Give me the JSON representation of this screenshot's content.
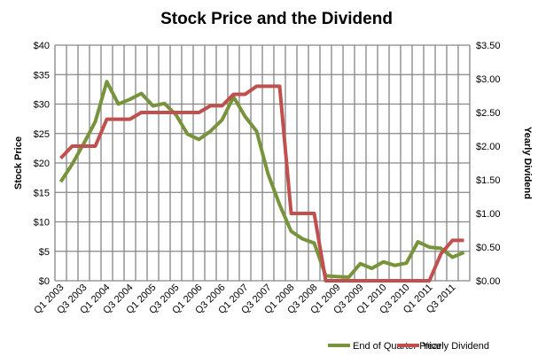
{
  "chart_data": {
    "type": "line",
    "title": "Stock Price and the Dividend",
    "ylabel": "Stock Price",
    "y2label": "Yearly Dividend",
    "ylim": [
      0,
      40
    ],
    "y2lim": [
      0,
      3.5
    ],
    "yticks": [
      "$0",
      "$5",
      "$10",
      "$15",
      "$20",
      "$25",
      "$30",
      "$35",
      "$40"
    ],
    "y2ticks": [
      "$0.00",
      "$0.50",
      "$1.00",
      "$1.50",
      "$2.00",
      "$2.50",
      "$3.00",
      "$3.50"
    ],
    "grid": true,
    "legend": "bottom",
    "categories": [
      "Q1 2003",
      "Q2 2003",
      "Q3 2003",
      "Q4 2003",
      "Q1 2004",
      "Q2 2004",
      "Q3 2004",
      "Q4 2004",
      "Q1 2005",
      "Q2 2005",
      "Q3 2005",
      "Q4 2005",
      "Q1 2006",
      "Q2 2006",
      "Q3 2006",
      "Q4 2006",
      "Q1 2007",
      "Q2 2007",
      "Q3 2007",
      "Q4 2007",
      "Q1 2008",
      "Q2 2008",
      "Q3 2008",
      "Q4 2008",
      "Q1 2009",
      "Q2 2009",
      "Q3 2009",
      "Q4 2009",
      "Q1 2010",
      "Q2 2010",
      "Q3 2010",
      "Q4 2010",
      "Q1 2011",
      "Q2 2011",
      "Q3 2011",
      "Q4 2011"
    ],
    "xticklabels": [
      "Q1 2003",
      "Q3 2003",
      "Q1 2004",
      "Q3 2004",
      "Q1 2005",
      "Q3 2005",
      "Q1 2006",
      "Q3 2006",
      "Q1 2007",
      "Q3 2007",
      "Q1 2008",
      "Q3 2008",
      "Q1 2009",
      "Q3 2009",
      "Q1 2010",
      "Q3 2010",
      "Q1 2011",
      "Q3 2011"
    ],
    "series": [
      {
        "name": "End of Quarter Price",
        "axis": "left",
        "color": "#77933C",
        "values": [
          16.8,
          19.8,
          23.3,
          27.0,
          33.8,
          30.0,
          30.8,
          31.8,
          29.7,
          30.1,
          28.2,
          24.9,
          24.0,
          25.4,
          27.3,
          31.2,
          27.9,
          25.4,
          18.1,
          12.9,
          8.4,
          7.1,
          6.4,
          0.85,
          0.7,
          0.6,
          2.9,
          2.1,
          3.2,
          2.6,
          3.0,
          6.6,
          5.7,
          5.5,
          4.0,
          4.8
        ]
      },
      {
        "name": "Yearly Dividend",
        "axis": "right",
        "color": "#C0504D",
        "values": [
          1.82,
          2.0,
          2.0,
          2.0,
          2.4,
          2.4,
          2.4,
          2.5,
          2.5,
          2.5,
          2.5,
          2.5,
          2.5,
          2.6,
          2.6,
          2.77,
          2.77,
          2.89,
          2.89,
          2.89,
          1.0,
          1.0,
          1.0,
          0,
          0,
          0,
          0,
          0,
          0,
          0,
          0,
          0,
          0,
          0.4,
          0.6,
          0.6
        ]
      }
    ]
  }
}
